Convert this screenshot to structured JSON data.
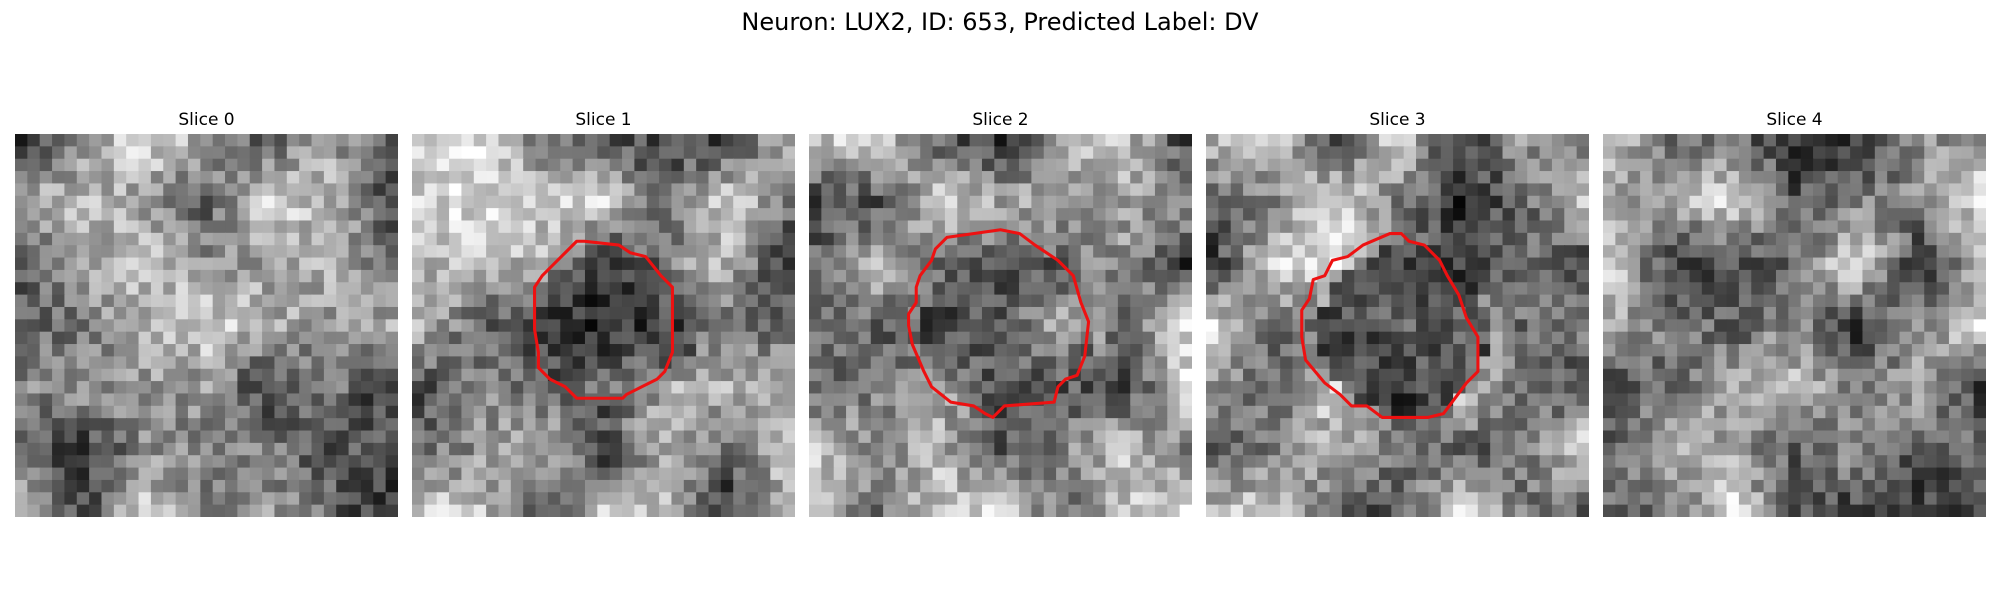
{
  "figure": {
    "title": "Neuron: LUX2, ID: 653, Predicted Label: DV"
  },
  "contour_color": "#ee1111",
  "slices": [
    {
      "title": "Slice 0",
      "has_contour": false,
      "seed": 11,
      "contour": []
    },
    {
      "title": "Slice 1",
      "has_contour": true,
      "seed": 23,
      "contour": [
        [
          0.45,
          0.28
        ],
        [
          0.54,
          0.29
        ],
        [
          0.57,
          0.31
        ],
        [
          0.61,
          0.32
        ],
        [
          0.65,
          0.37
        ],
        [
          0.68,
          0.4
        ],
        [
          0.68,
          0.57
        ],
        [
          0.66,
          0.62
        ],
        [
          0.64,
          0.64
        ],
        [
          0.6,
          0.66
        ],
        [
          0.56,
          0.68
        ],
        [
          0.55,
          0.69
        ],
        [
          0.43,
          0.69
        ],
        [
          0.4,
          0.66
        ],
        [
          0.36,
          0.64
        ],
        [
          0.33,
          0.61
        ],
        [
          0.33,
          0.57
        ],
        [
          0.32,
          0.51
        ],
        [
          0.32,
          0.4
        ],
        [
          0.34,
          0.37
        ],
        [
          0.37,
          0.34
        ],
        [
          0.4,
          0.31
        ],
        [
          0.43,
          0.28
        ]
      ]
    },
    {
      "title": "Slice 2",
      "has_contour": true,
      "seed": 37,
      "contour": [
        [
          0.36,
          0.27
        ],
        [
          0.5,
          0.25
        ],
        [
          0.55,
          0.26
        ],
        [
          0.59,
          0.29
        ],
        [
          0.65,
          0.33
        ],
        [
          0.69,
          0.37
        ],
        [
          0.71,
          0.44
        ],
        [
          0.73,
          0.49
        ],
        [
          0.72,
          0.58
        ],
        [
          0.7,
          0.63
        ],
        [
          0.67,
          0.64
        ],
        [
          0.65,
          0.66
        ],
        [
          0.64,
          0.7
        ],
        [
          0.51,
          0.71
        ],
        [
          0.48,
          0.74
        ],
        [
          0.46,
          0.73
        ],
        [
          0.43,
          0.71
        ],
        [
          0.37,
          0.7
        ],
        [
          0.32,
          0.66
        ],
        [
          0.3,
          0.62
        ],
        [
          0.27,
          0.55
        ],
        [
          0.26,
          0.5
        ],
        [
          0.26,
          0.47
        ],
        [
          0.28,
          0.44
        ],
        [
          0.28,
          0.4
        ],
        [
          0.29,
          0.37
        ],
        [
          0.32,
          0.33
        ],
        [
          0.33,
          0.3
        ]
      ]
    },
    {
      "title": "Slice 3",
      "has_contour": true,
      "seed": 51,
      "contour": [
        [
          0.48,
          0.26
        ],
        [
          0.51,
          0.26
        ],
        [
          0.53,
          0.28
        ],
        [
          0.57,
          0.29
        ],
        [
          0.61,
          0.33
        ],
        [
          0.63,
          0.37
        ],
        [
          0.66,
          0.42
        ],
        [
          0.68,
          0.48
        ],
        [
          0.71,
          0.53
        ],
        [
          0.71,
          0.62
        ],
        [
          0.68,
          0.65
        ],
        [
          0.65,
          0.69
        ],
        [
          0.62,
          0.73
        ],
        [
          0.58,
          0.74
        ],
        [
          0.54,
          0.74
        ],
        [
          0.46,
          0.74
        ],
        [
          0.42,
          0.71
        ],
        [
          0.38,
          0.71
        ],
        [
          0.35,
          0.68
        ],
        [
          0.31,
          0.65
        ],
        [
          0.26,
          0.59
        ],
        [
          0.25,
          0.53
        ],
        [
          0.25,
          0.46
        ],
        [
          0.27,
          0.43
        ],
        [
          0.28,
          0.38
        ],
        [
          0.31,
          0.37
        ],
        [
          0.33,
          0.33
        ],
        [
          0.37,
          0.32
        ],
        [
          0.41,
          0.29
        ]
      ]
    },
    {
      "title": "Slice 4",
      "has_contour": false,
      "seed": 67,
      "contour": []
    }
  ]
}
